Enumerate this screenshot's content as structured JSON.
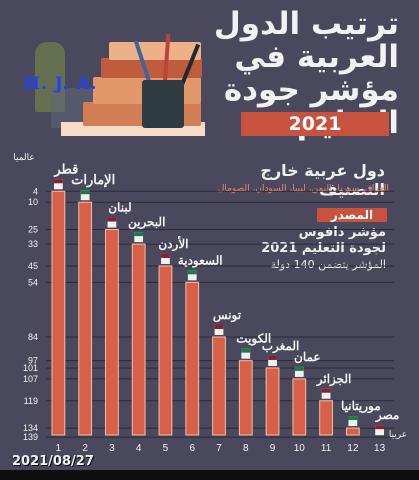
{
  "poster": {
    "title": "ترتيب الدول العربية في مؤشر جودة التعليم",
    "year_badge": "2021",
    "watermark": "H. J. A.",
    "outside_title": "دول عربية خارج التصنيف",
    "outside_list": "العراق، سوريا، اليمن، ليبيا، السودان، الصومال",
    "source_label": "المصدر",
    "source_line1": "مؤشر دافوس",
    "source_line2": "لجودة التعليم 2021",
    "source_line3": "المؤشر يتضمن 140 دولة",
    "date_stamp": "2021/08/27"
  },
  "chart_data": {
    "type": "bar",
    "title": "ترتيب الدول العربية في مؤشر جودة التعليم",
    "xlabel": "عربيا",
    "ylabel": "عالميا",
    "x_tick_labels": [
      "1",
      "2",
      "3",
      "4",
      "5",
      "6",
      "7",
      "8",
      "9",
      "10",
      "11",
      "12",
      "13"
    ],
    "y_tick_labels": [
      "4",
      "10",
      "25",
      "33",
      "45",
      "54",
      "84",
      "97",
      "101",
      "107",
      "119",
      "134",
      "139"
    ],
    "categories": [
      "قطر",
      "الإمارات",
      "لبنان",
      "البحرين",
      "الأردن",
      "السعودية",
      "تونس",
      "الكويت",
      "المغرب",
      "عمان",
      "الجزائر",
      "موريتانيا",
      "مصر"
    ],
    "values": [
      4,
      10,
      25,
      33,
      45,
      54,
      84,
      97,
      101,
      107,
      119,
      134,
      139
    ],
    "series": [
      {
        "name": "",
        "values": [
          4,
          10,
          25,
          33,
          45,
          54,
          84,
          97,
          101,
          107,
          119,
          134,
          139
        ]
      }
    ],
    "ylim": [
      0,
      140
    ],
    "grid": true,
    "legend": "none",
    "orientation": "vertical",
    "y_axis_inverted": true
  },
  "colors": {
    "background": "#4a485d",
    "bar": "#d85f48",
    "bar_outline": "#f3bfa7",
    "grid": "#2b2a36",
    "title": "#f2f2f2",
    "badge": "#c9523f"
  },
  "icons": [
    "book-stack-icon",
    "pencil-cup-icon",
    "plant-icon",
    "flag-icons"
  ]
}
